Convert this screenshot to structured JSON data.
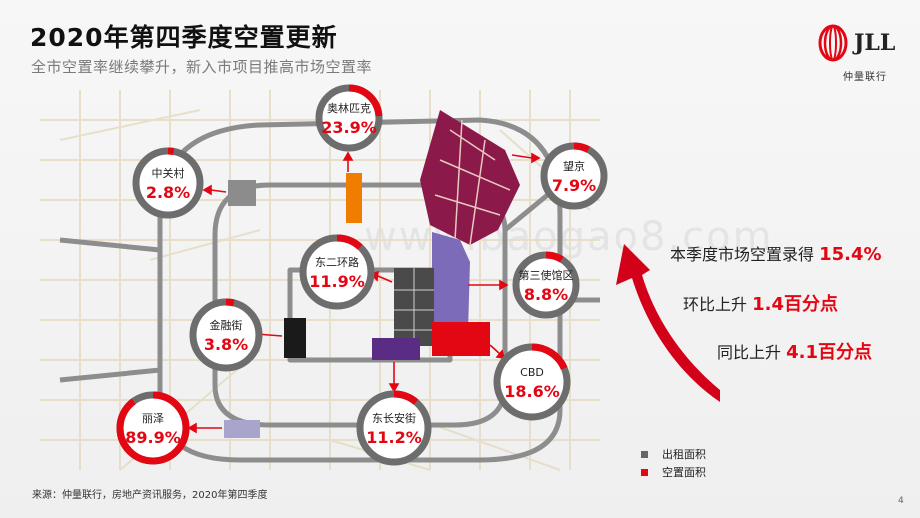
{
  "header": {
    "title": "2020年第四季度空置更新",
    "subtitle": "全市空置率继续攀升，新入市项目推高市场空置率"
  },
  "logo": {
    "text": "JLL",
    "cn": "仲量联行",
    "icon": "jll-ribbon-logo"
  },
  "stats": {
    "line1_label": "本季度市场空置录得",
    "line1_value": "15.4%",
    "line2_label": "环比上升",
    "line2_value": "1.4百分点",
    "line3_label": "同比上升",
    "line3_value": "4.1百分点"
  },
  "districts": [
    {
      "id": "olympic",
      "name": "奥林匹克",
      "vacancy": "23.9%",
      "rate": 23.9
    },
    {
      "id": "zhongguancun",
      "name": "中关村",
      "vacancy": "2.8%",
      "rate": 2.8
    },
    {
      "id": "wangjing",
      "name": "望京",
      "vacancy": "7.9%",
      "rate": 7.9
    },
    {
      "id": "east2ring",
      "name": "东二环路",
      "vacancy": "11.9%",
      "rate": 11.9
    },
    {
      "id": "embassy3",
      "name": "第三使馆区",
      "vacancy": "8.8%",
      "rate": 8.8
    },
    {
      "id": "finance",
      "name": "金融街",
      "vacancy": "3.8%",
      "rate": 3.8
    },
    {
      "id": "cbd",
      "name": "CBD",
      "vacancy": "18.6%",
      "rate": 18.6
    },
    {
      "id": "lize",
      "name": "丽泽",
      "vacancy": "89.9%",
      "rate": 89.9
    },
    {
      "id": "dongchangan",
      "name": "东长安街",
      "vacancy": "11.2%",
      "rate": 11.2
    }
  ],
  "legend": {
    "leased": "出租面积",
    "vacant": "空置面积",
    "leased_color": "#666666",
    "vacant_color": "#e30613"
  },
  "colors": {
    "accent": "#e30613",
    "ring_grey": "#6d6d6d",
    "wangjing_zone": "#8b1a4a",
    "olympic_zone": "#f07d00",
    "embassy_zone": "#7b6bb8",
    "east2ring_zone": "#4a4a4a",
    "cbd_zone": "#e30613",
    "finance_zone": "#1a1a1a",
    "dongchangan_zone": "#5b2c83",
    "lize_zone": "#a9a4cc",
    "zgc_zone": "#8c8c8c"
  },
  "footer": {
    "source": "来源：仲量联行，房地产资讯服务，2020年第四季度",
    "page": "4"
  },
  "watermark": "www.baogao8.com"
}
